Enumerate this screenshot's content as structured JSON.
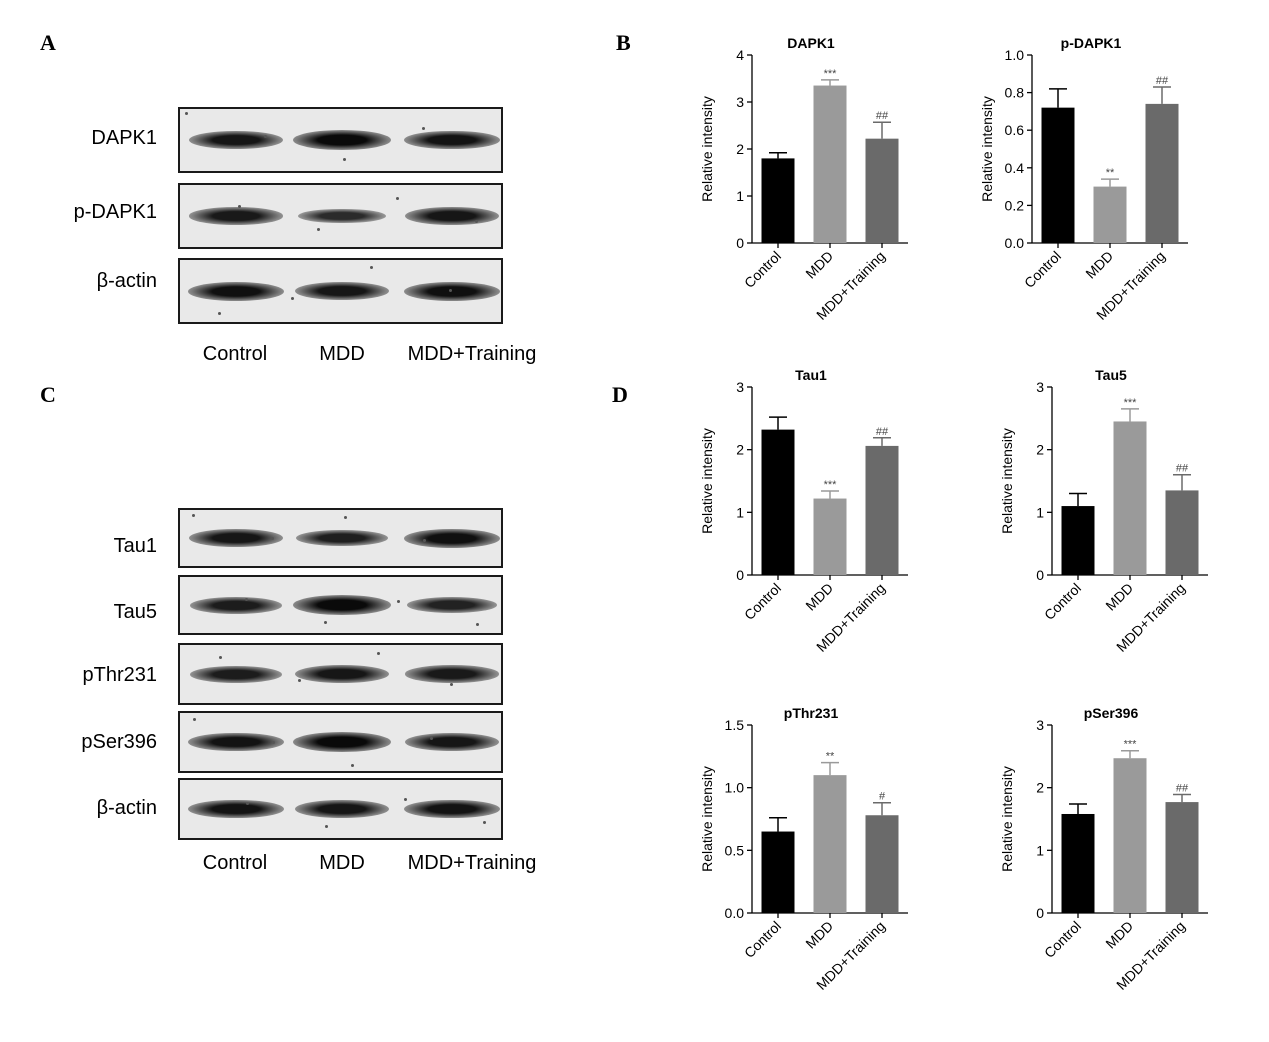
{
  "panels": {
    "A": "A",
    "B": "B",
    "C": "C",
    "D": "D"
  },
  "blot_A": {
    "rows": [
      "DAPK1",
      "p-DAPK1",
      "β-actin"
    ],
    "lanes": [
      "Control",
      "MDD",
      "MDD+Training"
    ],
    "band_intensity": [
      [
        0.8,
        1.0,
        0.85
      ],
      [
        0.75,
        0.45,
        0.8
      ],
      [
        0.9,
        0.8,
        0.9
      ]
    ]
  },
  "blot_C": {
    "rows": [
      "Tau1",
      "Tau5",
      "pThr231",
      "pSer396",
      "β-actin"
    ],
    "lanes": [
      "Control",
      "MDD",
      "MDD+Training"
    ],
    "band_intensity": [
      [
        0.8,
        0.65,
        0.9
      ],
      [
        0.7,
        1.0,
        0.6
      ],
      [
        0.7,
        0.8,
        0.75
      ],
      [
        0.85,
        1.0,
        0.8
      ],
      [
        0.85,
        0.8,
        0.85
      ]
    ]
  },
  "chart_data": [
    {
      "type": "bar",
      "title": "DAPK1",
      "ylabel": "Relative intensity",
      "categories": [
        "Control",
        "MDD",
        "MDD+Training"
      ],
      "values": [
        1.8,
        3.35,
        2.22
      ],
      "errors": [
        0.12,
        0.12,
        0.35
      ],
      "annotations": [
        "",
        "***",
        "##"
      ],
      "ylim": [
        0,
        4
      ],
      "yticks": [
        "0",
        "1",
        "2",
        "3",
        "4"
      ],
      "colors": [
        "#000000",
        "#9a9a9a",
        "#6a6a6a"
      ]
    },
    {
      "type": "bar",
      "title": "p-DAPK1",
      "ylabel": "Relative intensity",
      "categories": [
        "Control",
        "MDD",
        "MDD+Training"
      ],
      "values": [
        0.72,
        0.3,
        0.74
      ],
      "errors": [
        0.1,
        0.04,
        0.09
      ],
      "annotations": [
        "",
        "**",
        "##"
      ],
      "ylim": [
        0,
        1.0
      ],
      "yticks": [
        "0.0",
        "0.2",
        "0.4",
        "0.6",
        "0.8",
        "1.0"
      ],
      "colors": [
        "#000000",
        "#9a9a9a",
        "#6a6a6a"
      ]
    },
    {
      "type": "bar",
      "title": "Tau1",
      "ylabel": "Relative intensity",
      "categories": [
        "Control",
        "MDD",
        "MDD+Training"
      ],
      "values": [
        2.32,
        1.22,
        2.06
      ],
      "errors": [
        0.2,
        0.12,
        0.13
      ],
      "annotations": [
        "",
        "***",
        "##"
      ],
      "ylim": [
        0,
        3
      ],
      "yticks": [
        "0",
        "1",
        "2",
        "3"
      ],
      "colors": [
        "#000000",
        "#9a9a9a",
        "#6a6a6a"
      ]
    },
    {
      "type": "bar",
      "title": "Tau5",
      "ylabel": "Relative intensity",
      "categories": [
        "Control",
        "MDD",
        "MDD+Training"
      ],
      "values": [
        1.1,
        2.45,
        1.35
      ],
      "errors": [
        0.2,
        0.2,
        0.25
      ],
      "annotations": [
        "",
        "***",
        "##"
      ],
      "ylim": [
        0,
        3
      ],
      "yticks": [
        "0",
        "1",
        "2",
        "3"
      ],
      "colors": [
        "#000000",
        "#9a9a9a",
        "#6a6a6a"
      ]
    },
    {
      "type": "bar",
      "title": "pThr231",
      "ylabel": "Relative intensity",
      "categories": [
        "Control",
        "MDD",
        "MDD+Training"
      ],
      "values": [
        0.65,
        1.1,
        0.78
      ],
      "errors": [
        0.11,
        0.1,
        0.1
      ],
      "annotations": [
        "",
        "**",
        "#"
      ],
      "ylim": [
        0,
        1.5
      ],
      "yticks": [
        "0.0",
        "0.5",
        "1.0",
        "1.5"
      ],
      "colors": [
        "#000000",
        "#9a9a9a",
        "#6a6a6a"
      ]
    },
    {
      "type": "bar",
      "title": "pSer396",
      "ylabel": "Relative intensity",
      "categories": [
        "Control",
        "MDD",
        "MDD+Training"
      ],
      "values": [
        1.58,
        2.47,
        1.77
      ],
      "errors": [
        0.16,
        0.12,
        0.12
      ],
      "annotations": [
        "",
        "***",
        "##"
      ],
      "ylim": [
        0,
        3
      ],
      "yticks": [
        "0",
        "1",
        "2",
        "3"
      ],
      "colors": [
        "#000000",
        "#9a9a9a",
        "#6a6a6a"
      ]
    }
  ]
}
